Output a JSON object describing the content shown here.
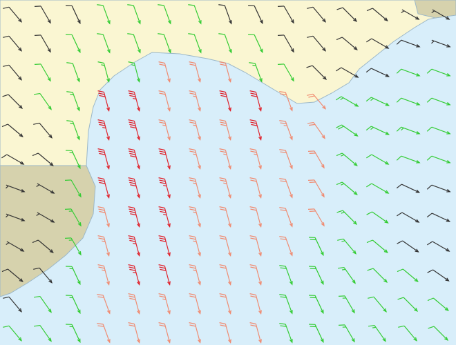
{
  "wind": {
    "speed": [
      [
        8,
        10,
        10,
        12,
        12,
        12,
        12,
        10,
        8,
        8,
        8,
        8,
        8,
        6,
        6
      ],
      [
        8,
        10,
        12,
        12,
        12,
        12,
        12,
        12,
        12,
        10,
        8,
        8,
        8,
        8,
        6
      ],
      [
        10,
        12,
        12,
        14,
        15,
        20,
        22,
        22,
        15,
        12,
        10,
        10,
        8,
        12,
        12
      ],
      [
        10,
        12,
        14,
        30,
        35,
        22,
        25,
        30,
        32,
        22,
        20,
        15,
        14,
        12,
        12
      ],
      [
        8,
        10,
        15,
        35,
        40,
        25,
        25,
        28,
        32,
        25,
        22,
        18,
        15,
        14,
        12
      ],
      [
        8,
        8,
        15,
        32,
        38,
        30,
        25,
        25,
        25,
        22,
        22,
        15,
        12,
        12,
        12
      ],
      [
        6,
        6,
        12,
        30,
        38,
        35,
        25,
        25,
        22,
        22,
        20,
        15,
        12,
        10,
        10
      ],
      [
        6,
        6,
        14,
        28,
        38,
        35,
        25,
        22,
        22,
        20,
        20,
        15,
        12,
        10,
        10
      ],
      [
        6,
        8,
        14,
        25,
        35,
        32,
        25,
        22,
        20,
        20,
        18,
        15,
        12,
        10,
        10
      ],
      [
        8,
        10,
        14,
        25,
        35,
        30,
        25,
        22,
        20,
        18,
        18,
        15,
        12,
        12,
        10
      ],
      [
        10,
        12,
        14,
        22,
        28,
        25,
        22,
        22,
        20,
        18,
        18,
        15,
        12,
        12,
        12
      ],
      [
        12,
        12,
        15,
        22,
        22,
        22,
        20,
        20,
        20,
        18,
        18,
        15,
        15,
        12,
        12
      ]
    ],
    "direction": [
      [
        320,
        330,
        335,
        340,
        340,
        340,
        340,
        340,
        335,
        330,
        320,
        315,
        310,
        300,
        300
      ],
      [
        320,
        330,
        335,
        340,
        340,
        340,
        340,
        340,
        335,
        330,
        320,
        310,
        300,
        290,
        290
      ],
      [
        320,
        330,
        340,
        345,
        345,
        345,
        345,
        345,
        340,
        330,
        315,
        300,
        295,
        290,
        290
      ],
      [
        315,
        325,
        340,
        345,
        345,
        345,
        345,
        345,
        345,
        340,
        320,
        300,
        295,
        290,
        290
      ],
      [
        310,
        320,
        340,
        345,
        345,
        345,
        345,
        345,
        345,
        340,
        325,
        305,
        295,
        290,
        290
      ],
      [
        300,
        310,
        335,
        345,
        345,
        345,
        345,
        345,
        345,
        340,
        330,
        310,
        300,
        290,
        290
      ],
      [
        290,
        300,
        330,
        345,
        345,
        345,
        345,
        345,
        345,
        340,
        330,
        310,
        300,
        295,
        290
      ],
      [
        290,
        300,
        330,
        345,
        345,
        345,
        345,
        345,
        345,
        340,
        330,
        315,
        305,
        300,
        295
      ],
      [
        300,
        310,
        330,
        345,
        345,
        345,
        345,
        345,
        345,
        340,
        335,
        320,
        310,
        305,
        300
      ],
      [
        310,
        320,
        335,
        345,
        345,
        345,
        345,
        345,
        345,
        340,
        335,
        325,
        315,
        310,
        305
      ],
      [
        320,
        325,
        335,
        340,
        345,
        345,
        345,
        345,
        345,
        340,
        335,
        330,
        320,
        315,
        310
      ],
      [
        320,
        325,
        335,
        340,
        345,
        345,
        345,
        345,
        345,
        340,
        335,
        330,
        325,
        320,
        315
      ]
    ]
  }
}
